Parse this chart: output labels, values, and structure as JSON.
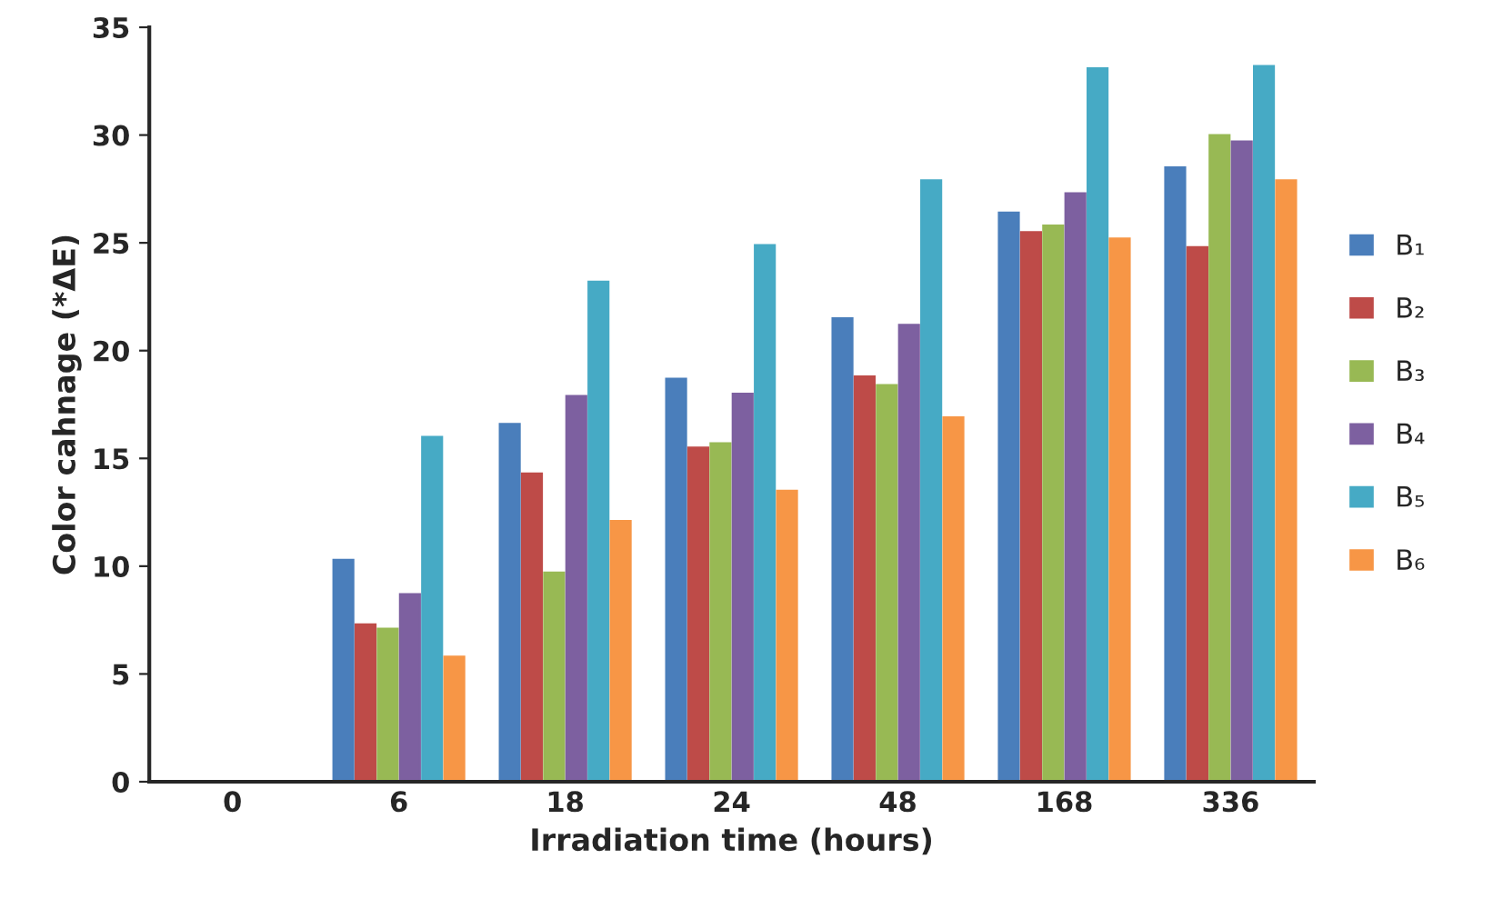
{
  "chart_data": {
    "type": "bar",
    "xlabel": "Irradiation time (hours)",
    "ylabel": "Color cahnage (*ΔE)",
    "categories": [
      "0",
      "6",
      "18",
      "24",
      "48",
      "168",
      "336"
    ],
    "series": [
      {
        "name": "B₁",
        "color": "#4a7ebb",
        "values": [
          0,
          10.3,
          16.6,
          18.7,
          21.5,
          26.4,
          28.5
        ]
      },
      {
        "name": "B₂",
        "color": "#be4b48",
        "values": [
          0,
          7.3,
          14.3,
          15.5,
          18.8,
          25.5,
          24.8
        ]
      },
      {
        "name": "B₃",
        "color": "#98b954",
        "values": [
          0,
          7.1,
          9.7,
          15.7,
          18.4,
          25.8,
          30.0
        ]
      },
      {
        "name": "B₄",
        "color": "#7d60a0",
        "values": [
          0,
          8.7,
          17.9,
          18.0,
          21.2,
          27.3,
          29.7
        ]
      },
      {
        "name": "B₅",
        "color": "#46aac5",
        "values": [
          0,
          16.0,
          23.2,
          24.9,
          27.9,
          33.1,
          33.2
        ]
      },
      {
        "name": "B₆",
        "color": "#f79646",
        "values": [
          0,
          5.8,
          12.1,
          13.5,
          16.9,
          25.2,
          27.9
        ]
      }
    ],
    "ylim": [
      0,
      35
    ],
    "yticks": [
      0,
      5,
      10,
      15,
      20,
      25,
      30,
      35
    ],
    "grid": false,
    "legend": "right"
  }
}
